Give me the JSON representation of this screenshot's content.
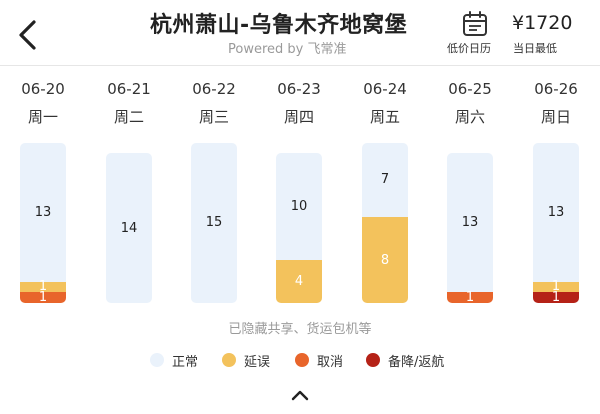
{
  "header": {
    "title": "杭州萧山-乌鲁木齐地窝堡",
    "powered": "Powered by 飞常准",
    "calendar_label": "低价日历",
    "price": "¥1720",
    "price_label": "当日最低"
  },
  "icons": {
    "back": "chevron-left-icon",
    "calendar": "calendar-icon",
    "collapse": "chevron-up-icon"
  },
  "colors": {
    "normal": "#eaf2fb",
    "delay": "#f3c25c",
    "cancel": "#e8652b",
    "divert": "#b52217"
  },
  "chart_data": {
    "type": "bar",
    "stacked": true,
    "categories": [
      "06-20",
      "06-21",
      "06-22",
      "06-23",
      "06-24",
      "06-25",
      "06-26"
    ],
    "weekdays": [
      "周一",
      "周二",
      "周三",
      "周四",
      "周五",
      "周六",
      "周日"
    ],
    "series": [
      {
        "name": "正常",
        "key": "normal",
        "values": [
          13,
          14,
          15,
          10,
          7,
          13,
          13
        ]
      },
      {
        "name": "延误",
        "key": "delay",
        "values": [
          1,
          0,
          0,
          4,
          8,
          0,
          1
        ]
      },
      {
        "name": "取消",
        "key": "cancel",
        "values": [
          1,
          0,
          0,
          0,
          0,
          1,
          0
        ]
      },
      {
        "name": "备降/返航",
        "key": "divert",
        "values": [
          0,
          0,
          0,
          0,
          0,
          0,
          1
        ]
      }
    ],
    "note": "已隐藏共享、货运包机等"
  }
}
